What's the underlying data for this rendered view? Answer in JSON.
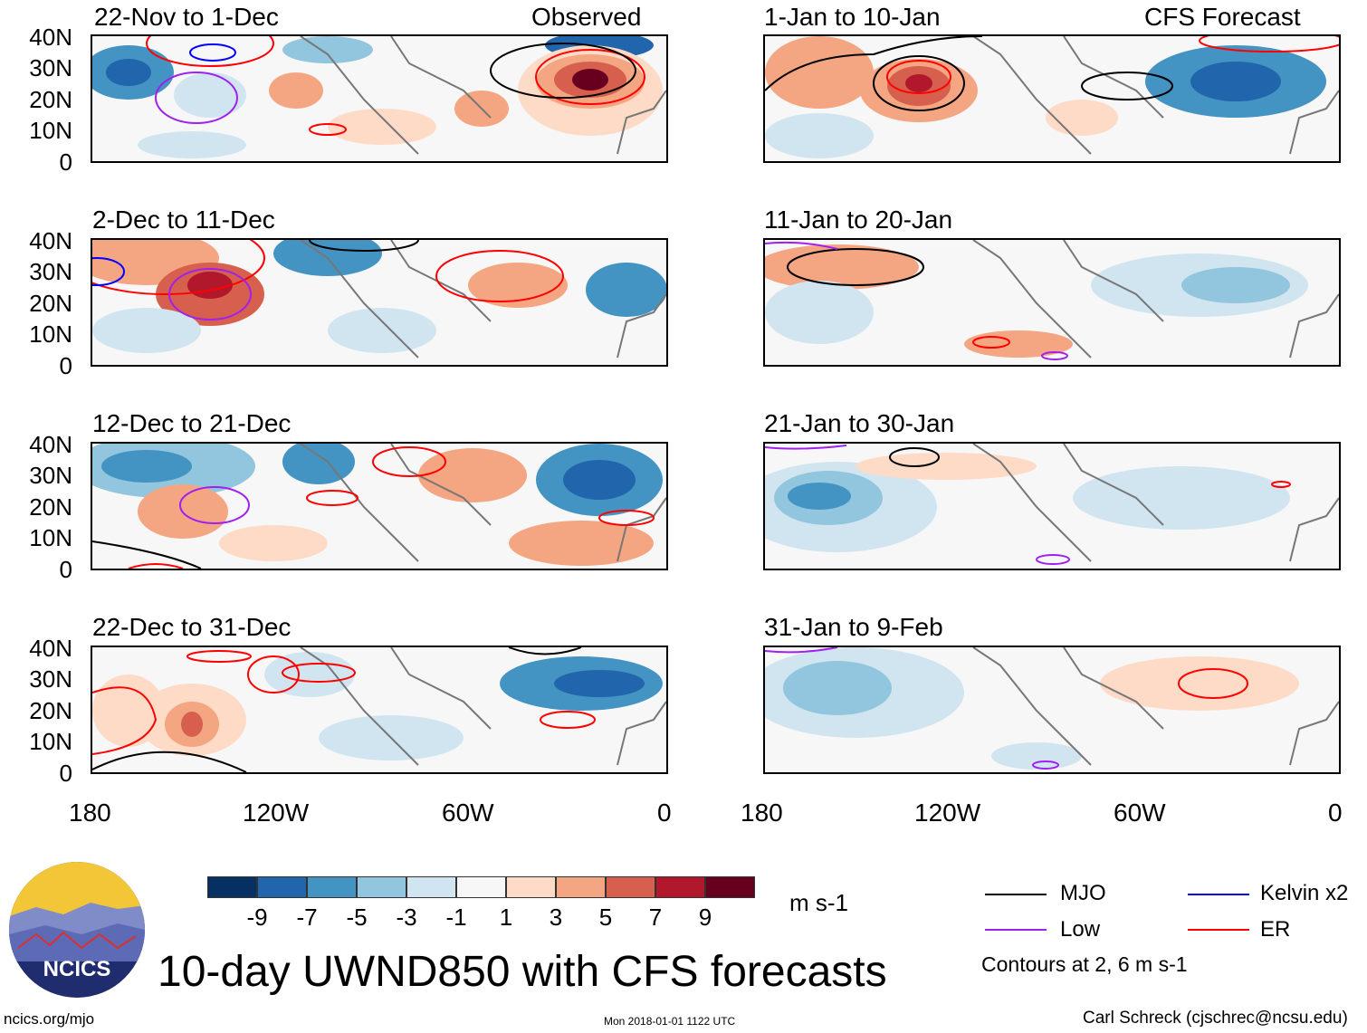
{
  "panels_observed": [
    {
      "title": "22-Nov to 1-Dec",
      "tag": "Observed"
    },
    {
      "title": "2-Dec to 11-Dec",
      "tag": ""
    },
    {
      "title": "12-Dec to 21-Dec",
      "tag": ""
    },
    {
      "title": "22-Dec to 31-Dec",
      "tag": ""
    }
  ],
  "panels_forecast": [
    {
      "title": "1-Jan to 10-Jan",
      "tag": "CFS Forecast"
    },
    {
      "title": "11-Jan to 20-Jan",
      "tag": ""
    },
    {
      "title": "21-Jan to 30-Jan",
      "tag": ""
    },
    {
      "title": "31-Jan to 9-Feb",
      "tag": ""
    }
  ],
  "y_axis_labels": [
    "40N",
    "30N",
    "20N",
    "10N",
    "0"
  ],
  "x_axis_labels": [
    "180",
    "120W",
    "60W",
    "0"
  ],
  "colorbar": {
    "labels": [
      "-9",
      "-7",
      "-5",
      "-3",
      "-1",
      "1",
      "3",
      "5",
      "7",
      "9"
    ],
    "colors": [
      "#053061",
      "#2166ac",
      "#4393c3",
      "#92c5de",
      "#d1e5f0",
      "#f7f7f7",
      "#fddbc7",
      "#f4a582",
      "#d6604d",
      "#b2182b",
      "#67001f"
    ],
    "units": "m s-1"
  },
  "legend": {
    "mjo": {
      "label": "MJO",
      "color": "#000000"
    },
    "kelvin": {
      "label": "Kelvin x2",
      "color": "#0000ff"
    },
    "low": {
      "label": "Low",
      "color": "#a020f0"
    },
    "er": {
      "label": "ER",
      "color": "#ff0000"
    },
    "note": "Contours at 2, 6 m s-1"
  },
  "logo": {
    "text": "NCICS"
  },
  "main_title": "10-day UWND850 with CFS forecasts",
  "footer": {
    "left": "ncics.org/mjo",
    "center": "Mon 2018-01-01 1122 UTC",
    "right": "Carl Schreck (cjschrec@ncsu.edu)"
  }
}
